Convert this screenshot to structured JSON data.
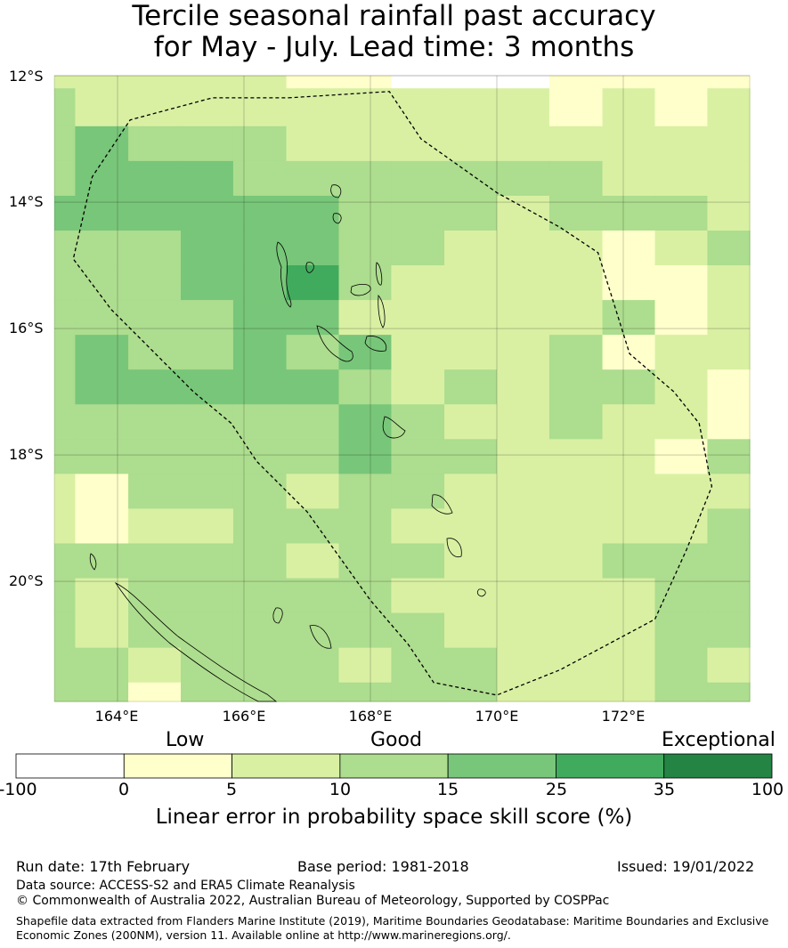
{
  "title": {
    "line1": "Tercile seasonal rainfall past accuracy",
    "line2": "for May - July. Lead time: 3 months"
  },
  "map": {
    "lat_labels": [
      "12°S",
      "14°S",
      "16°S",
      "18°S",
      "20°S"
    ],
    "lon_labels": [
      "164°E",
      "166°E",
      "168°E",
      "170°E",
      "172°E"
    ],
    "bounds": {
      "lon_min": 163.0,
      "lon_max": 174.0,
      "lat_min": -21.9,
      "lat_max": -12.0
    },
    "cell_lons": [
      163.0,
      163.33,
      164.17,
      165.0,
      165.83,
      166.67,
      167.5,
      168.33,
      169.17,
      170.0,
      170.83,
      171.67,
      172.5,
      173.33,
      174.0
    ],
    "cell_lats": [
      -12.0,
      -12.2,
      -12.8,
      -13.35,
      -13.9,
      -14.45,
      -15.0,
      -15.55,
      -16.1,
      -16.65,
      -17.2,
      -17.75,
      -18.3,
      -18.85,
      -19.4,
      -19.95,
      -20.5,
      -21.05,
      -21.6,
      -21.9
    ],
    "skill_classes": [
      [
        2,
        2,
        2,
        2,
        2,
        1,
        1,
        0,
        0,
        0,
        1,
        1,
        1,
        1
      ],
      [
        3,
        2,
        2,
        2,
        2,
        2,
        2,
        2,
        2,
        2,
        1,
        2,
        1,
        2
      ],
      [
        3,
        4,
        3,
        3,
        3,
        2,
        2,
        2,
        2,
        2,
        2,
        2,
        2,
        2
      ],
      [
        3,
        4,
        4,
        4,
        3,
        3,
        3,
        3,
        3,
        3,
        3,
        2,
        2,
        2
      ],
      [
        4,
        4,
        4,
        4,
        4,
        4,
        3,
        3,
        3,
        2,
        3,
        3,
        3,
        2
      ],
      [
        3,
        3,
        3,
        4,
        4,
        4,
        3,
        3,
        2,
        2,
        2,
        1,
        2,
        3
      ],
      [
        3,
        3,
        3,
        4,
        4,
        5,
        3,
        2,
        2,
        2,
        2,
        1,
        1,
        2
      ],
      [
        3,
        3,
        3,
        3,
        4,
        4,
        2,
        2,
        2,
        2,
        2,
        3,
        1,
        2
      ],
      [
        3,
        4,
        3,
        3,
        4,
        3,
        4,
        2,
        2,
        2,
        3,
        1,
        2,
        2
      ],
      [
        3,
        4,
        4,
        4,
        4,
        4,
        3,
        2,
        3,
        2,
        3,
        3,
        2,
        1
      ],
      [
        3,
        3,
        3,
        3,
        3,
        3,
        4,
        3,
        2,
        2,
        3,
        2,
        2,
        1
      ],
      [
        3,
        3,
        3,
        3,
        3,
        3,
        4,
        3,
        3,
        2,
        2,
        2,
        1,
        3
      ],
      [
        2,
        1,
        3,
        3,
        3,
        2,
        3,
        3,
        2,
        2,
        2,
        2,
        2,
        2
      ],
      [
        2,
        1,
        2,
        2,
        3,
        3,
        3,
        2,
        2,
        2,
        2,
        2,
        2,
        3
      ],
      [
        3,
        3,
        3,
        3,
        3,
        2,
        3,
        3,
        2,
        2,
        2,
        3,
        3,
        3
      ],
      [
        3,
        2,
        3,
        3,
        3,
        3,
        3,
        2,
        2,
        2,
        2,
        2,
        3,
        3
      ],
      [
        3,
        2,
        3,
        3,
        3,
        3,
        3,
        3,
        2,
        2,
        2,
        2,
        3,
        3
      ],
      [
        3,
        3,
        2,
        3,
        3,
        3,
        2,
        3,
        3,
        2,
        2,
        2,
        3,
        2
      ],
      [
        3,
        3,
        1,
        3,
        3,
        3,
        3,
        3,
        3,
        2,
        2,
        2,
        3,
        3
      ]
    ],
    "eez_boundary": [
      [
        166.7,
        -12.35
      ],
      [
        168.3,
        -12.25
      ],
      [
        168.8,
        -13.0
      ],
      [
        170.0,
        -13.85
      ],
      [
        171.0,
        -14.4
      ],
      [
        171.6,
        -14.8
      ],
      [
        172.1,
        -16.4
      ],
      [
        172.8,
        -17.0
      ],
      [
        173.2,
        -17.5
      ],
      [
        173.4,
        -18.5
      ],
      [
        173.0,
        -19.5
      ],
      [
        172.5,
        -20.6
      ],
      [
        171.0,
        -21.4
      ],
      [
        170.0,
        -21.8
      ],
      [
        169.0,
        -21.6
      ],
      [
        168.6,
        -21.0
      ],
      [
        168.0,
        -20.3
      ],
      [
        167.5,
        -19.6
      ],
      [
        167.0,
        -18.9
      ],
      [
        166.6,
        -18.5
      ],
      [
        166.2,
        -18.1
      ],
      [
        165.8,
        -17.5
      ],
      [
        165.2,
        -17.0
      ],
      [
        164.5,
        -16.3
      ],
      [
        163.9,
        -15.7
      ],
      [
        163.3,
        -14.9
      ],
      [
        163.6,
        -13.6
      ],
      [
        164.2,
        -12.7
      ],
      [
        165.5,
        -12.35
      ],
      [
        166.7,
        -12.35
      ]
    ]
  },
  "legend": {
    "categories": [
      "Low",
      "Good",
      "Exceptional"
    ],
    "ticks": [
      "-100",
      "0",
      "5",
      "10",
      "15",
      "25",
      "35",
      "100"
    ],
    "colors": [
      "#ffffff",
      "#ffffcc",
      "#d9f0a3",
      "#addd8e",
      "#78c679",
      "#41ab5d",
      "#238443"
    ],
    "title": "Linear error in probability space skill score (%)"
  },
  "footer": {
    "run_date": "Run date: 17th February",
    "base_period": "Base period: 1981-2018",
    "issued": "Issued: 19/01/2022",
    "data_source": "Data source: ACCESS-S2 and ERA5 Climate Reanalysis",
    "copyright": "© Commonwealth of Australia 2022, Australian Bureau of Meteorology, Supported by COSPPac",
    "shapefile_line1": "Shapefile data extracted from Flanders Marine Institute (2019), Maritime Boundaries Geodatabase: Maritime Boundaries and Exclusive",
    "shapefile_line2": "Economic Zones (200NM), version 11. Available online at http://www.marineregions.org/."
  }
}
